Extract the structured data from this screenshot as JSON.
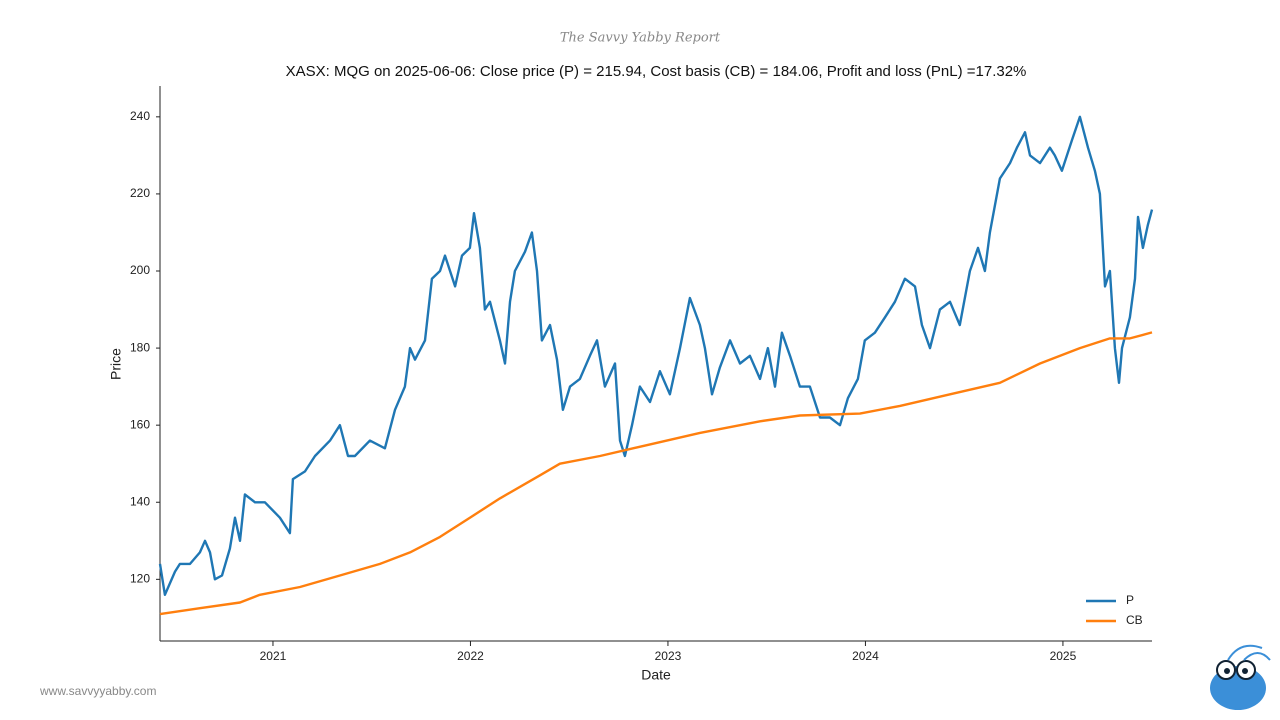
{
  "brand": "The Savvy Yabby Report",
  "footer": "www.savvyyabby.com",
  "chart_data": {
    "type": "line",
    "title": "XASX: MQG on 2025-06-06: Close price (P) = 215.94, Cost basis (CB) = 184.06, Profit and loss (PnL) =17.32%",
    "x_label": "Date",
    "y_label": "Price",
    "xlim": [
      2020.428,
      2025.451
    ],
    "xticks": [
      2021,
      2022,
      2023,
      2024,
      2025
    ],
    "ylim": [
      104,
      248
    ],
    "yticks": [
      120,
      140,
      160,
      180,
      200,
      220,
      240
    ],
    "legend": "lower right",
    "series": [
      {
        "name": "P",
        "color": "#1f77b4",
        "x": [
          2020.428,
          2020.453,
          2020.504,
          2020.529,
          2020.58,
          2020.63,
          2020.656,
          2020.681,
          2020.706,
          2020.742,
          2020.782,
          2020.808,
          2020.833,
          2020.858,
          2020.909,
          2020.959,
          2021.035,
          2021.086,
          2021.101,
          2021.162,
          2021.213,
          2021.289,
          2021.339,
          2021.38,
          2021.415,
          2021.491,
          2021.567,
          2021.618,
          2021.668,
          2021.694,
          2021.719,
          2021.77,
          2021.805,
          2021.846,
          2021.871,
          2021.922,
          2021.957,
          2021.997,
          2022.018,
          2022.048,
          2022.073,
          2022.099,
          2022.149,
          2022.175,
          2022.2,
          2022.225,
          2022.276,
          2022.311,
          2022.337,
          2022.362,
          2022.403,
          2022.438,
          2022.468,
          2022.504,
          2022.554,
          2022.605,
          2022.641,
          2022.681,
          2022.732,
          2022.757,
          2022.782,
          2022.818,
          2022.858,
          2022.909,
          2022.959,
          2023.01,
          2023.061,
          2023.111,
          2023.162,
          2023.187,
          2023.223,
          2023.263,
          2023.314,
          2023.365,
          2023.415,
          2023.466,
          2023.506,
          2023.542,
          2023.577,
          2023.618,
          2023.668,
          2023.719,
          2023.77,
          2023.82,
          2023.871,
          2023.911,
          2023.962,
          2023.997,
          2024.048,
          2024.099,
          2024.149,
          2024.2,
          2024.251,
          2024.286,
          2024.327,
          2024.377,
          2024.428,
          2024.478,
          2024.529,
          2024.57,
          2024.605,
          2024.63,
          2024.681,
          2024.732,
          2024.767,
          2024.808,
          2024.833,
          2024.884,
          2024.934,
          2024.959,
          2024.995,
          2025.046,
          2025.086,
          2025.127,
          2025.162,
          2025.187,
          2025.213,
          2025.238,
          2025.263,
          2025.284,
          2025.299,
          2025.339,
          2025.365,
          2025.38,
          2025.405,
          2025.43,
          2025.451
        ],
        "values": [
          124,
          116,
          122,
          124,
          124,
          127,
          130,
          127,
          120,
          121,
          128,
          136,
          130,
          142,
          140,
          140,
          136,
          132,
          146,
          148,
          152,
          156,
          160,
          152,
          152,
          156,
          154,
          164,
          170,
          180,
          177,
          182,
          198,
          200,
          204,
          196,
          204,
          206,
          215,
          206,
          190,
          192,
          182,
          176,
          192,
          200,
          205,
          210,
          200,
          182,
          186,
          177,
          164,
          170,
          172,
          178,
          182,
          170,
          176,
          156,
          152,
          160,
          170,
          166,
          174,
          168,
          180,
          193,
          186,
          180,
          168,
          175,
          182,
          176,
          178,
          172,
          180,
          170,
          184,
          178,
          170,
          170,
          162,
          162,
          160,
          167,
          172,
          182,
          184,
          188,
          192,
          198,
          196,
          186,
          180,
          190,
          192,
          186,
          200,
          206,
          200,
          210,
          224,
          228,
          232,
          236,
          230,
          228,
          232,
          230,
          226,
          234,
          240,
          232,
          226,
          220,
          196,
          200,
          180,
          171,
          180,
          188,
          198,
          214,
          206,
          212,
          215.94
        ]
      },
      {
        "name": "CB",
        "color": "#ff7f0e",
        "x": [
          2020.428,
          2020.63,
          2020.833,
          2020.934,
          2021.137,
          2021.339,
          2021.542,
          2021.694,
          2021.846,
          2021.997,
          2022.149,
          2022.352,
          2022.453,
          2022.656,
          2022.909,
          2023.162,
          2023.466,
          2023.668,
          2023.972,
          2024.175,
          2024.428,
          2024.681,
          2024.884,
          2025.086,
          2025.238,
          2025.339,
          2025.451
        ],
        "values": [
          111,
          112.5,
          114,
          116,
          118,
          121,
          124,
          127,
          131,
          136,
          141,
          147,
          150,
          152,
          155,
          158,
          161,
          162.5,
          163,
          165,
          168,
          171,
          176,
          180,
          182.5,
          182.5,
          184.06
        ]
      }
    ]
  }
}
